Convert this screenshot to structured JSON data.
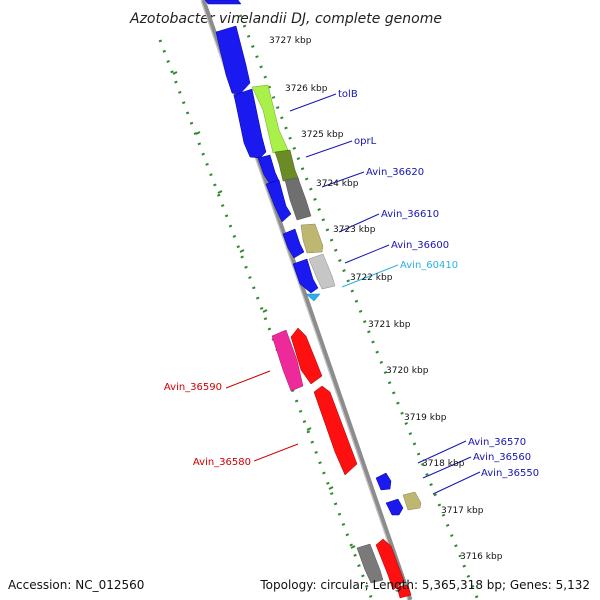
{
  "title": "Azotobacter vinelandii DJ, complete genome",
  "footer": {
    "accession": "Accession: NC_012560",
    "topology": "Topology: circular; Length: 5,365,318 bp; Genes: 5,132"
  },
  "colors": {
    "backbone": "#909090",
    "grid": "#2e8b2e",
    "forward_label": "#1515b4",
    "reverse_label": "#d00000",
    "rna_label": "#2ab0e8"
  },
  "ticks": [
    "3727 kbp",
    "3726 kbp",
    "3725 kbp",
    "3724 kbp",
    "3723 kbp",
    "3722 kbp",
    "3721 kbp",
    "3720 kbp",
    "3719 kbp",
    "3718 kbp",
    "3717 kbp",
    "3716 kbp"
  ],
  "gene_labels": {
    "tolB": "tolB",
    "oprL": "oprL",
    "avin36620": "Avin_36620",
    "avin36610": "Avin_36610",
    "avin36600": "Avin_36600",
    "avin60410": "Avin_60410",
    "avin36590": "Avin_36590",
    "avin36580": "Avin_36580",
    "avin36570": "Avin_36570",
    "avin36560": "Avin_36560",
    "avin36550": "Avin_36550"
  }
}
